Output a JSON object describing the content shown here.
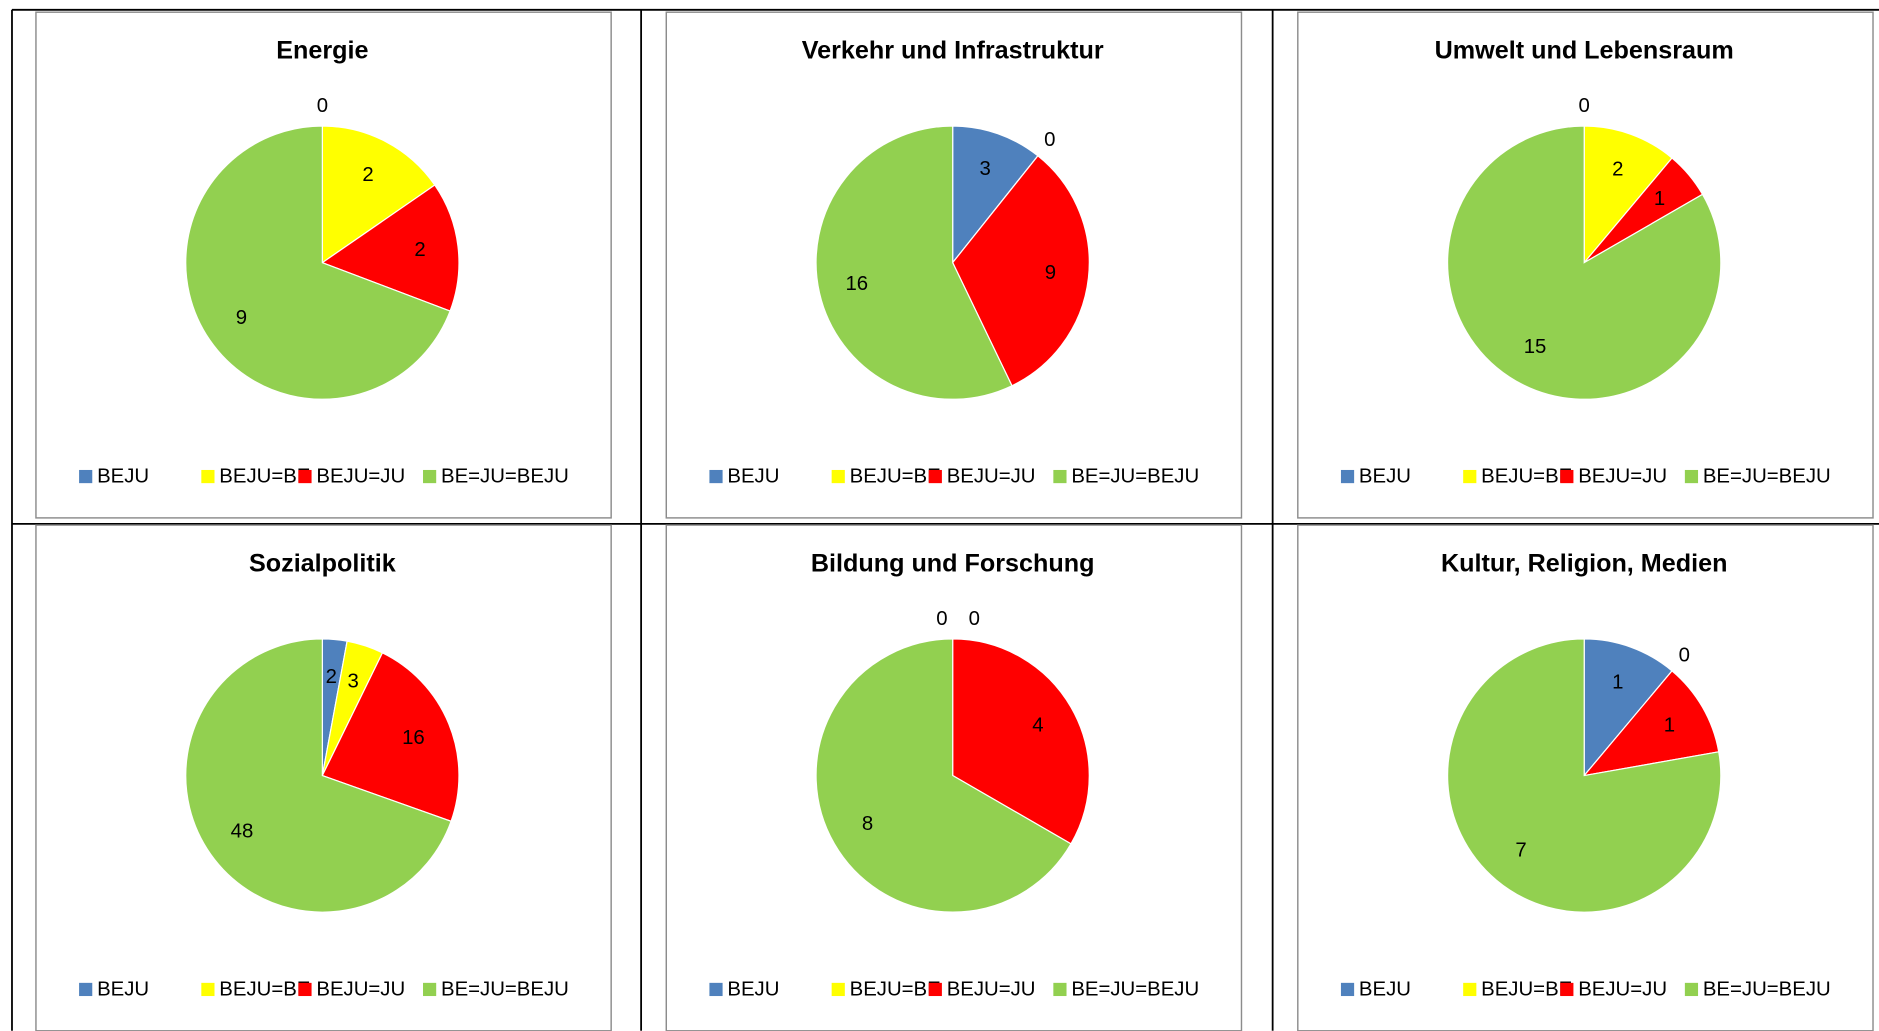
{
  "chart_data": [
    {
      "type": "pie",
      "title": "Energie",
      "categories": [
        "BEJU",
        "BEJU=BE",
        "BEJU=JU",
        "BE=JU=BEJU"
      ],
      "values": [
        0,
        2,
        2,
        9
      ],
      "colors": [
        "#4f81bd",
        "#ffff00",
        "#ff0000",
        "#92d050"
      ],
      "legend": "bottom"
    },
    {
      "type": "pie",
      "title": "Verkehr und Infrastruktur",
      "categories": [
        "BEJU",
        "BEJU=BE",
        "BEJU=JU",
        "BE=JU=BEJU"
      ],
      "values": [
        3,
        0,
        9,
        16
      ],
      "colors": [
        "#4f81bd",
        "#ffff00",
        "#ff0000",
        "#92d050"
      ],
      "legend": "bottom"
    },
    {
      "type": "pie",
      "title": "Umwelt und Lebensraum",
      "categories": [
        "BEJU",
        "BEJU=BE",
        "BEJU=JU",
        "BE=JU=BEJU"
      ],
      "values": [
        0,
        2,
        1,
        15
      ],
      "colors": [
        "#4f81bd",
        "#ffff00",
        "#ff0000",
        "#92d050"
      ],
      "legend": "bottom"
    },
    {
      "type": "pie",
      "title": "Sozialpolitik",
      "categories": [
        "BEJU",
        "BEJU=BE",
        "BEJU=JU",
        "BE=JU=BEJU"
      ],
      "values": [
        2,
        3,
        16,
        48
      ],
      "colors": [
        "#4f81bd",
        "#ffff00",
        "#ff0000",
        "#92d050"
      ],
      "legend": "bottom"
    },
    {
      "type": "pie",
      "title": "Bildung und Forschung",
      "categories": [
        "BEJU",
        "BEJU=BE",
        "BEJU=JU",
        "BE=JU=BEJU"
      ],
      "values": [
        0,
        0,
        4,
        8
      ],
      "colors": [
        "#4f81bd",
        "#ffff00",
        "#ff0000",
        "#92d050"
      ],
      "legend": "bottom"
    },
    {
      "type": "pie",
      "title": "Kultur, Religion, Medien",
      "categories": [
        "BEJU",
        "BEJU=BE",
        "BEJU=JU",
        "BE=JU=BEJU"
      ],
      "values": [
        1,
        0,
        1,
        7
      ],
      "colors": [
        "#4f81bd",
        "#ffff00",
        "#ff0000",
        "#92d050"
      ],
      "legend": "bottom"
    }
  ]
}
